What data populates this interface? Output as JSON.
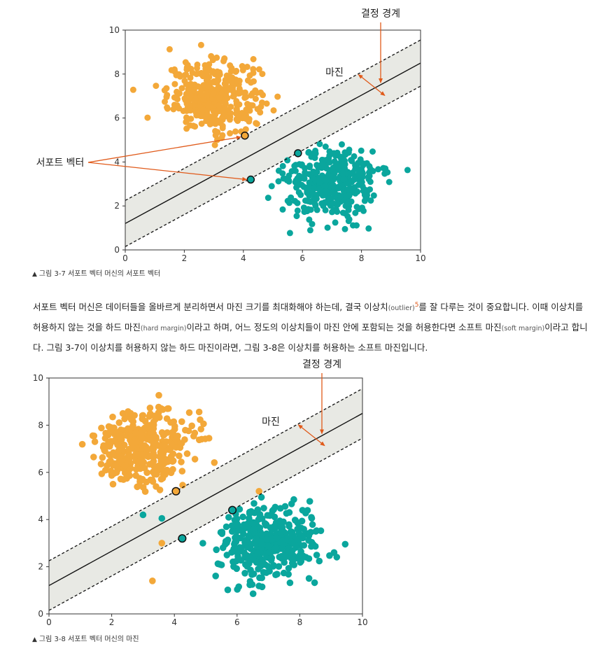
{
  "figure1": {
    "caption_marker": "▲",
    "caption": "그림 3-7 서포트 벡터 머신의 서포트 벡터",
    "labels": {
      "decision_boundary": "결정 경계",
      "margin": "마진",
      "support_vector": "서포트 벡터"
    }
  },
  "paragraph": {
    "t1": "서포트 벡터 머신은 데이터들을 올바르게 분리하면서 마진 크기를 최대화해야 하는데, 결국 이상치",
    "outlier": "(outlier)",
    "footnote": "5",
    "t2": "를 잘 다루는 것이 중요합니다. 이때 이상치를 허용하지 않는 것을 하드 마진",
    "hard_margin": "(hard margin)",
    "t3": "이라고 하며, 어느 정도의 이상치들이 마진 안에 포함되는 것을 허용한다면 소프트 마진",
    "soft_margin": "(soft margin)",
    "t4": "이라고 합니다. 그림 3-7이 이상치를 허용하지 않는 하드 마진이라면, 그림 3-8은 이상치를 허용하는 소프트 마진입니다."
  },
  "figure2": {
    "caption_marker": "▲",
    "caption": "그림 3-8 서포트 벡터 머신의 마진",
    "labels": {
      "decision_boundary": "결정 경계",
      "margin": "마진"
    }
  },
  "colors": {
    "orange_class": "#f3a839",
    "teal_class": "#0aa69d",
    "arrow": "#e05a1a",
    "margin_band": "#e8e9e4"
  },
  "chart_data": [
    {
      "type": "scatter",
      "xlim": [
        0,
        10
      ],
      "ylim": [
        0,
        10
      ],
      "xticks": [
        0,
        2,
        4,
        6,
        8,
        10
      ],
      "yticks": [
        0,
        2,
        4,
        6,
        8,
        10
      ],
      "decision_boundary": {
        "slope": 0.73,
        "intercept": 1.2
      },
      "margin_offset": 1.05,
      "series": [
        {
          "color": "orange",
          "center": [
            3.0,
            7.0
          ],
          "count": 380
        },
        {
          "color": "teal",
          "center": [
            7.0,
            3.0
          ],
          "count": 380
        }
      ],
      "support_vectors": [
        [
          4.05,
          5.2
        ],
        [
          4.25,
          3.2
        ],
        [
          5.85,
          4.4
        ]
      ],
      "outliers": []
    },
    {
      "type": "scatter",
      "xlim": [
        0,
        10
      ],
      "ylim": [
        0,
        10
      ],
      "xticks": [
        0,
        2,
        4,
        6,
        8,
        10
      ],
      "yticks": [
        0,
        2,
        4,
        6,
        8,
        10
      ],
      "decision_boundary": {
        "slope": 0.73,
        "intercept": 1.2
      },
      "margin_offset": 1.05,
      "series": [
        {
          "color": "orange",
          "center": [
            3.0,
            7.0
          ],
          "count": 380
        },
        {
          "color": "teal",
          "center": [
            7.0,
            3.0
          ],
          "count": 380
        }
      ],
      "support_vectors": [
        [
          4.05,
          5.2
        ],
        [
          4.25,
          3.2
        ],
        [
          5.85,
          4.4
        ]
      ],
      "outliers": [
        {
          "color": "orange",
          "x": 6.7,
          "y": 5.2
        },
        {
          "color": "orange",
          "x": 3.6,
          "y": 3.0
        },
        {
          "color": "orange",
          "x": 3.3,
          "y": 1.4
        },
        {
          "color": "teal",
          "x": 3.0,
          "y": 4.2
        },
        {
          "color": "teal",
          "x": 3.6,
          "y": 4.05
        }
      ]
    }
  ]
}
